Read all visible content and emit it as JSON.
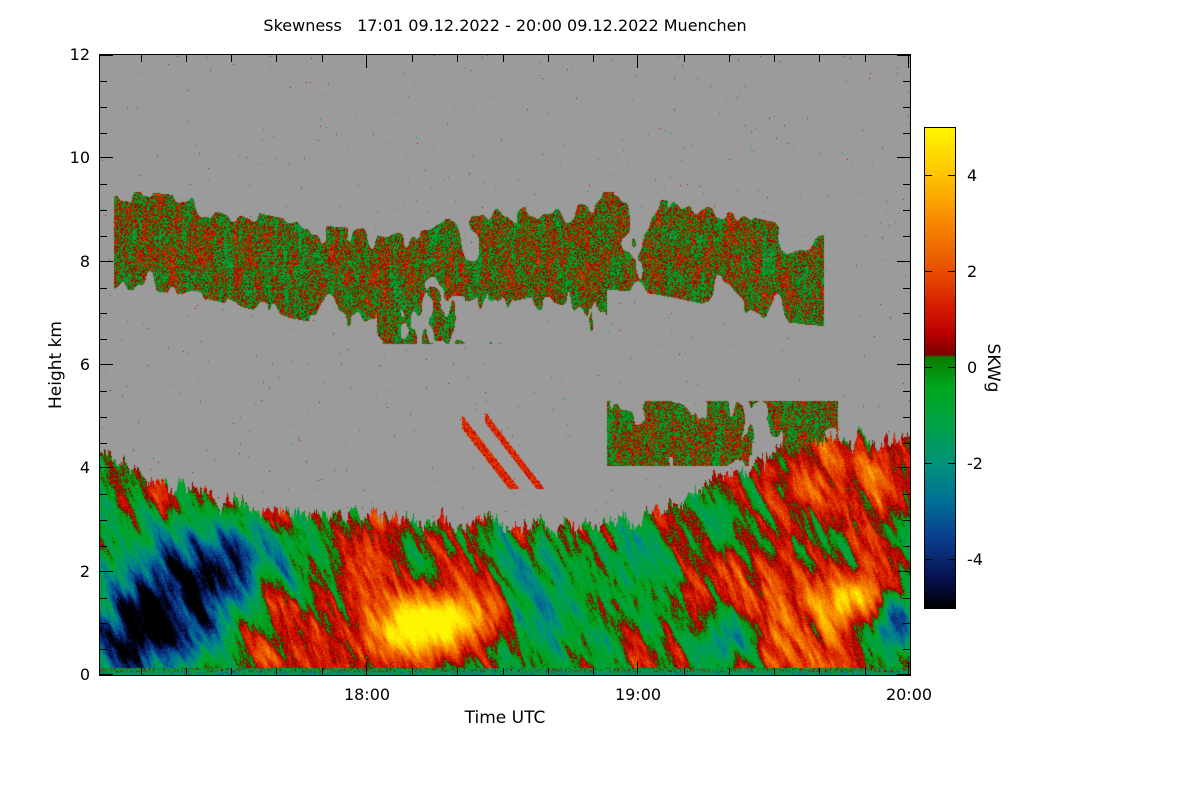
{
  "chart_data": {
    "type": "heatmap",
    "title": "Skewness   17:01 09.12.2022 - 20:00 09.12.2022 Muenchen",
    "xlabel": "Time UTC",
    "ylabel": "Height km",
    "x_start_label": "17:01",
    "x_end_label": "20:00",
    "x_total_minutes": 179,
    "x_major_ticks": [
      {
        "label": "18:00",
        "minute": 59
      },
      {
        "label": "19:00",
        "minute": 119
      },
      {
        "label": "20:00",
        "minute": 179
      }
    ],
    "x_minor_tick_step_minutes": 10,
    "ylim": [
      0,
      12
    ],
    "y_major_ticks": [
      0,
      2,
      4,
      6,
      8,
      10,
      12
    ],
    "y_minor_tick_step": 0.5,
    "value_range": [
      -5,
      5
    ],
    "no_data_color": "#9b9b9b",
    "background_color": "#ffffff",
    "colorbar": {
      "label": "SKWg",
      "range": [
        -5,
        5
      ],
      "ticks": [
        4,
        2,
        0,
        -2,
        -4
      ],
      "color_stops": [
        [
          -5.0,
          "#000000"
        ],
        [
          -4.4,
          "#06104e"
        ],
        [
          -3.6,
          "#0b3a8c"
        ],
        [
          -2.8,
          "#006e96"
        ],
        [
          -2.0,
          "#00927c"
        ],
        [
          -1.2,
          "#00a246"
        ],
        [
          -0.4,
          "#00a71e"
        ],
        [
          0.22,
          "#0c7c00"
        ],
        [
          0.28,
          "#7d0000"
        ],
        [
          0.7,
          "#b90000"
        ],
        [
          1.3,
          "#d81e00"
        ],
        [
          2.0,
          "#e84e00"
        ],
        [
          3.0,
          "#f68600"
        ],
        [
          4.0,
          "#ffc300"
        ],
        [
          5.0,
          "#fef600"
        ]
      ]
    },
    "field_model": {
      "description": "Doppler-lidar skewness quicklook: gray = no signal; speckled cloud layers near 7-8.6 km; elevated layer 4-5.3 km around 19:00-19:40; turbulent boundary layer below ~3-4.6 km with red/green fall streaks, dark-blue downdraft lower-left, bright yellow updraft near 18:15 at 1 km.",
      "boundary_layer_top_km": [
        [
          0,
          4.3
        ],
        [
          15,
          3.7
        ],
        [
          30,
          3.3
        ],
        [
          50,
          3.1
        ],
        [
          70,
          3.0
        ],
        [
          90,
          2.9
        ],
        [
          105,
          2.85
        ],
        [
          118,
          3.0
        ],
        [
          128,
          3.3
        ],
        [
          138,
          3.9
        ],
        [
          150,
          4.3
        ],
        [
          165,
          4.6
        ],
        [
          179,
          4.5
        ]
      ],
      "gaussian_features": [
        {
          "name": "dark-blue-downdraft-left",
          "t": 12,
          "h": 0.9,
          "tw": 10,
          "hw": 0.8,
          "amp": -6.5,
          "slant": 6
        },
        {
          "name": "teal-band-left",
          "t": 26,
          "h": 2.1,
          "tw": 14,
          "hw": 0.5,
          "amp": -2.5,
          "slant": 5
        },
        {
          "name": "bright-yellow-updraft",
          "t": 74,
          "h": 1.0,
          "tw": 9,
          "hw": 0.42,
          "amp": 5.8,
          "slant": 7
        },
        {
          "name": "red-zone-center-left",
          "t": 60,
          "h": 1.8,
          "tw": 20,
          "hw": 0.9,
          "amp": 1.1,
          "slant": 4
        },
        {
          "name": "green-swath-center",
          "t": 97,
          "h": 1.1,
          "tw": 16,
          "hw": 0.9,
          "amp": -1.7,
          "slant": 3
        },
        {
          "name": "blue-spot-right-1",
          "t": 139,
          "h": 0.7,
          "tw": 5,
          "hw": 0.4,
          "amp": -4.2,
          "slant": 2
        },
        {
          "name": "blue-spot-right-2",
          "t": 176,
          "h": 0.9,
          "tw": 4,
          "hw": 0.5,
          "amp": -4.0,
          "slant": 2
        },
        {
          "name": "yellow-streak-right",
          "t": 167,
          "h": 1.5,
          "tw": 5,
          "hw": 0.35,
          "amp": 3.6,
          "slant": 4
        },
        {
          "name": "red-zone-right",
          "t": 150,
          "h": 1.3,
          "tw": 14,
          "hw": 0.9,
          "amp": 1.5,
          "slant": 3
        },
        {
          "name": "red-band-upper-right",
          "t": 163,
          "h": 4.0,
          "tw": 13,
          "hw": 0.7,
          "amp": 1.7,
          "slant": 2
        },
        {
          "name": "near-ground-red-bias",
          "t": 90,
          "h": 0.4,
          "tw": 400,
          "hw": 0.6,
          "amp": 0.5,
          "slant": 0
        },
        {
          "name": "mid-bl-green-bias",
          "t": 90,
          "h": 2.45,
          "tw": 400,
          "hw": 0.5,
          "amp": -0.45,
          "slant": 0
        }
      ],
      "cloud_bands": [
        {
          "name": "upper-cloud-layer",
          "t_range": [
            3,
            160
          ],
          "h_center": 8.05,
          "h_amp": 0.35,
          "h_halfwidth": 0.95,
          "noise": [
            0.16,
            0.85,
            5,
            300
          ],
          "threshold": 0.27
        },
        {
          "name": "mid-cloud-patch",
          "t_range": [
            60,
            112
          ],
          "h_range": [
            6.4,
            7.8
          ],
          "noise": [
            0.2,
            0.9,
            50,
            600
          ],
          "threshold": 0.52
        },
        {
          "name": "elevated-aerosol-layer",
          "t_range": [
            112,
            163
          ],
          "h_range": [
            4.05,
            5.3
          ],
          "noise": [
            0.22,
            1.1,
            80,
            700
          ],
          "threshold": 0.46
        }
      ],
      "fall_streaks": [
        {
          "t0": 80,
          "h0": 4.9,
          "t1": 96,
          "h1": 3.1,
          "w": 0.13
        },
        {
          "t0": 85,
          "h0": 5.0,
          "t1": 100,
          "h1": 3.3,
          "w": 0.1
        }
      ]
    }
  }
}
